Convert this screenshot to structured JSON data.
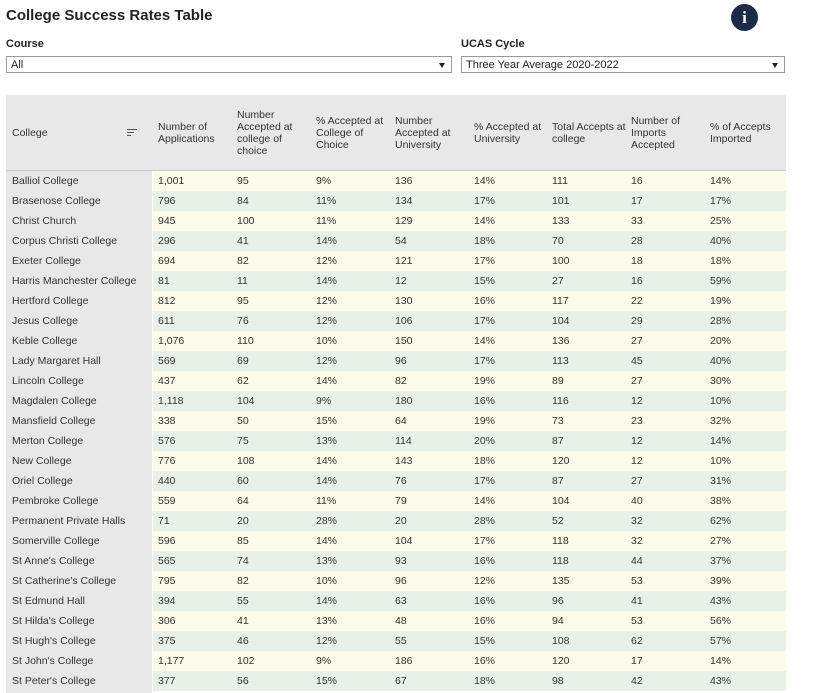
{
  "title": "College Success Rates Table",
  "filters": {
    "course": {
      "label": "Course",
      "value": "All"
    },
    "cycle": {
      "label": "UCAS Cycle",
      "value": "Three Year Average 2020-2022"
    }
  },
  "table": {
    "headers": [
      "College",
      "Number of Applications",
      "Number Accepted at college of choice",
      "% Accepted at College of Choice",
      "Number Accepted at University",
      "% Accepted at University",
      "Total Accepts at college",
      "Number of Imports Accepted",
      "% of Accepts Imported"
    ],
    "rows": [
      [
        "Balliol College",
        "1,001",
        "95",
        "9%",
        "136",
        "14%",
        "111",
        "16",
        "14%"
      ],
      [
        "Brasenose College",
        "796",
        "84",
        "11%",
        "134",
        "17%",
        "101",
        "17",
        "17%"
      ],
      [
        "Christ Church",
        "945",
        "100",
        "11%",
        "129",
        "14%",
        "133",
        "33",
        "25%"
      ],
      [
        "Corpus Christi College",
        "296",
        "41",
        "14%",
        "54",
        "18%",
        "70",
        "28",
        "40%"
      ],
      [
        "Exeter College",
        "694",
        "82",
        "12%",
        "121",
        "17%",
        "100",
        "18",
        "18%"
      ],
      [
        "Harris Manchester College",
        "81",
        "11",
        "14%",
        "12",
        "15%",
        "27",
        "16",
        "59%"
      ],
      [
        "Hertford College",
        "812",
        "95",
        "12%",
        "130",
        "16%",
        "117",
        "22",
        "19%"
      ],
      [
        "Jesus College",
        "611",
        "76",
        "12%",
        "106",
        "17%",
        "104",
        "29",
        "28%"
      ],
      [
        "Keble College",
        "1,076",
        "110",
        "10%",
        "150",
        "14%",
        "136",
        "27",
        "20%"
      ],
      [
        "Lady Margaret Hall",
        "569",
        "69",
        "12%",
        "96",
        "17%",
        "113",
        "45",
        "40%"
      ],
      [
        "Lincoln College",
        "437",
        "62",
        "14%",
        "82",
        "19%",
        "89",
        "27",
        "30%"
      ],
      [
        "Magdalen College",
        "1,118",
        "104",
        "9%",
        "180",
        "16%",
        "116",
        "12",
        "10%"
      ],
      [
        "Mansfield College",
        "338",
        "50",
        "15%",
        "64",
        "19%",
        "73",
        "23",
        "32%"
      ],
      [
        "Merton College",
        "576",
        "75",
        "13%",
        "114",
        "20%",
        "87",
        "12",
        "14%"
      ],
      [
        "New College",
        "776",
        "108",
        "14%",
        "143",
        "18%",
        "120",
        "12",
        "10%"
      ],
      [
        "Oriel College",
        "440",
        "60",
        "14%",
        "76",
        "17%",
        "87",
        "27",
        "31%"
      ],
      [
        "Pembroke College",
        "559",
        "64",
        "11%",
        "79",
        "14%",
        "104",
        "40",
        "38%"
      ],
      [
        "Permanent Private Halls",
        "71",
        "20",
        "28%",
        "20",
        "28%",
        "52",
        "32",
        "62%"
      ],
      [
        "Somerville College",
        "596",
        "85",
        "14%",
        "104",
        "17%",
        "118",
        "32",
        "27%"
      ],
      [
        "St Anne's College",
        "565",
        "74",
        "13%",
        "93",
        "16%",
        "118",
        "44",
        "37%"
      ],
      [
        "St Catherine's College",
        "795",
        "82",
        "10%",
        "96",
        "12%",
        "135",
        "53",
        "39%"
      ],
      [
        "St Edmund Hall",
        "394",
        "55",
        "14%",
        "63",
        "16%",
        "96",
        "41",
        "43%"
      ],
      [
        "St Hilda's College",
        "306",
        "41",
        "13%",
        "48",
        "16%",
        "94",
        "53",
        "56%"
      ],
      [
        "St Hugh's College",
        "375",
        "46",
        "12%",
        "55",
        "15%",
        "108",
        "62",
        "57%"
      ],
      [
        "St John's College",
        "1,177",
        "102",
        "9%",
        "186",
        "16%",
        "120",
        "17",
        "14%"
      ],
      [
        "St Peter's College",
        "377",
        "56",
        "15%",
        "67",
        "18%",
        "98",
        "42",
        "43%"
      ]
    ]
  }
}
